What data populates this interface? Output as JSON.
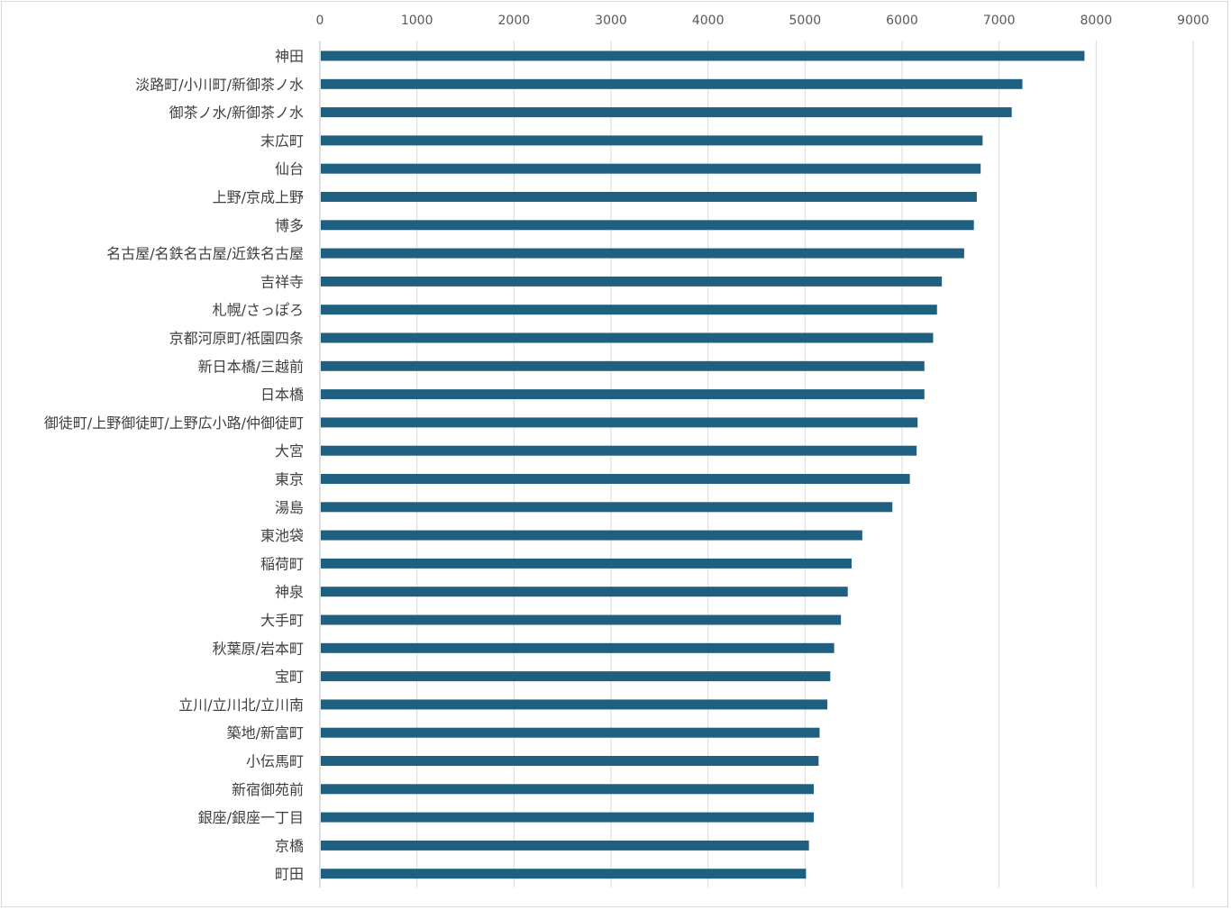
{
  "chart_data": {
    "type": "bar",
    "orientation": "horizontal",
    "xlim": [
      0,
      9000
    ],
    "xticks": [
      0,
      1000,
      2000,
      3000,
      4000,
      5000,
      6000,
      7000,
      8000,
      9000
    ],
    "tick_labels": [
      "0",
      "1000",
      "2000",
      "3000",
      "4000",
      "5000",
      "6000",
      "7000",
      "8000",
      "9000"
    ],
    "x_axis_position": "top",
    "grid": true,
    "bar_color": "#1f5f7f",
    "categories": [
      "神田",
      "淡路町/小川町/新御茶ノ水",
      "御茶ノ水/新御茶ノ水",
      "末広町",
      "仙台",
      "上野/京成上野",
      "博多",
      "名古屋/名鉄名古屋/近鉄名古屋",
      "吉祥寺",
      "札幌/さっぽろ",
      "京都河原町/祇園四条",
      "新日本橋/三越前",
      "日本橋",
      "御徒町/上野御徒町/上野広小路/仲御徒町",
      "大宮",
      "東京",
      "湯島",
      "東池袋",
      "稲荷町",
      "神泉",
      "大手町",
      "秋葉原/岩本町",
      "宝町",
      "立川/立川北/立川南",
      "築地/新富町",
      "小伝馬町",
      "新宿御苑前",
      "銀座/銀座一丁目",
      "京橋",
      "町田"
    ],
    "values": [
      7880,
      7240,
      7130,
      6830,
      6810,
      6770,
      6740,
      6640,
      6410,
      6360,
      6320,
      6230,
      6230,
      6160,
      6150,
      6080,
      5900,
      5590,
      5480,
      5440,
      5370,
      5300,
      5260,
      5230,
      5150,
      5140,
      5090,
      5090,
      5040,
      5010
    ]
  }
}
